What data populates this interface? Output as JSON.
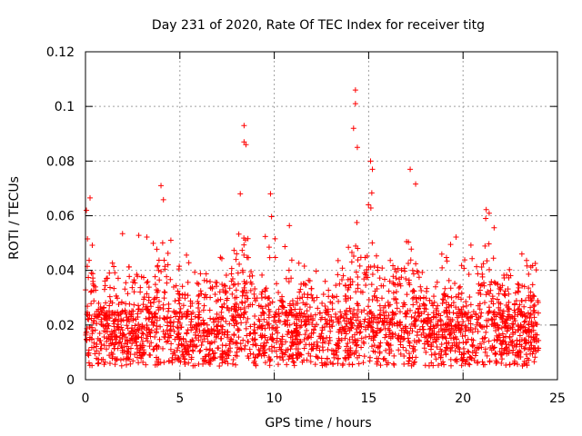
{
  "chart_data": {
    "type": "scatter",
    "title": "Day 231 of 2020, Rate Of TEC Index for receiver titg",
    "xlabel": "GPS time / hours",
    "ylabel": "ROTI / TECUs",
    "xlim": [
      0,
      25
    ],
    "ylim": [
      0,
      0.12
    ],
    "xticks": [
      0,
      5,
      10,
      15,
      20,
      25
    ],
    "xtick_labels": [
      "0",
      "5",
      "10",
      "15",
      "20",
      "25"
    ],
    "yticks": [
      0,
      0.02,
      0.04,
      0.06,
      0.08,
      0.1,
      0.12
    ],
    "ytick_labels": [
      "0",
      "0.02",
      "0.04",
      "0.06",
      "0.08",
      "0.1",
      "0.12"
    ],
    "grid": true,
    "marker": "plus",
    "color": "#ff0000",
    "series": [
      {
        "name": "ROTI",
        "x_range": [
          0,
          24
        ],
        "baseline_range": [
          0.005,
          0.025
        ],
        "notable_points": [
          {
            "x": 8.4,
            "y": 0.093
          },
          {
            "x": 8.4,
            "y": 0.087
          },
          {
            "x": 8.5,
            "y": 0.086
          },
          {
            "x": 14.3,
            "y": 0.106
          },
          {
            "x": 14.3,
            "y": 0.101
          },
          {
            "x": 14.2,
            "y": 0.092
          },
          {
            "x": 14.4,
            "y": 0.085
          },
          {
            "x": 15.1,
            "y": 0.08
          },
          {
            "x": 15.2,
            "y": 0.077
          },
          {
            "x": 17.2,
            "y": 0.077
          },
          {
            "x": 4.0,
            "y": 0.071
          },
          {
            "x": 0.05,
            "y": 0.062
          },
          {
            "x": 9.8,
            "y": 0.068
          },
          {
            "x": 8.2,
            "y": 0.068
          },
          {
            "x": 21.2,
            "y": 0.059
          }
        ]
      }
    ]
  }
}
